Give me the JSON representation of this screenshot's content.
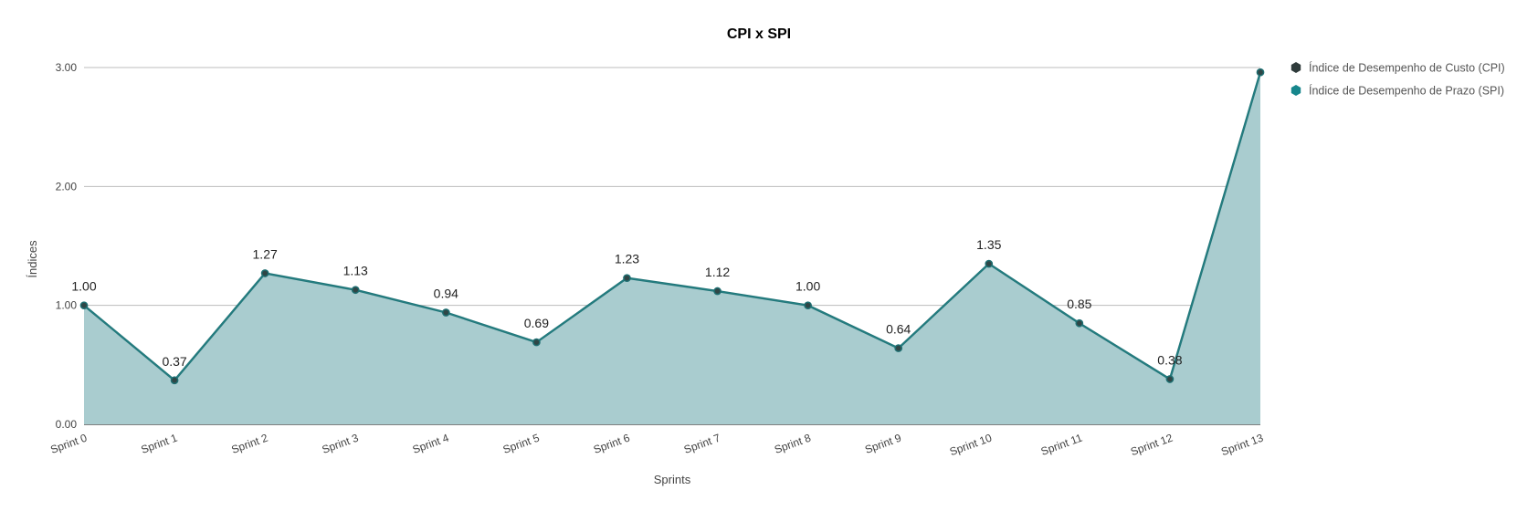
{
  "chart_data": {
    "type": "area",
    "title": "CPI x SPI",
    "xlabel": "Sprints",
    "ylabel": "Índices",
    "categories": [
      "Sprint 0",
      "Sprint 1",
      "Sprint 2",
      "Sprint 3",
      "Sprint 4",
      "Sprint 5",
      "Sprint 6",
      "Sprint 7",
      "Sprint 8",
      "Sprint 9",
      "Sprint 10",
      "Sprint 11",
      "Sprint 12",
      "Sprint 13"
    ],
    "ylim": [
      0,
      3
    ],
    "yticks": [
      "0.00",
      "1.00",
      "2.00",
      "3.00"
    ],
    "grid": true,
    "legend_position": "right",
    "series": [
      {
        "name": "Índice de Desempenho de Custo (CPI)",
        "color": "#2f3b3b",
        "values": [
          1.0,
          0.37,
          1.27,
          1.13,
          0.94,
          0.69,
          1.23,
          1.12,
          1.0,
          0.64,
          1.35,
          0.85,
          0.38,
          2.96
        ]
      },
      {
        "name": "Índice de Desempenho de Prazo (SPI)",
        "color": "#16868c",
        "values": [
          1.0,
          0.37,
          1.27,
          1.13,
          0.94,
          0.69,
          1.23,
          1.12,
          1.0,
          0.64,
          1.35,
          0.85,
          0.38,
          2.96
        ]
      }
    ],
    "data_labels": [
      "1.00",
      "0.37",
      "1.27",
      "1.13",
      "0.94",
      "0.69",
      "1.23",
      "1.12",
      "1.00",
      "0.64",
      "1.35",
      "0.85",
      "0.38",
      ""
    ],
    "area_fill_color": "#a9cccf",
    "line_color": "#237d80"
  }
}
